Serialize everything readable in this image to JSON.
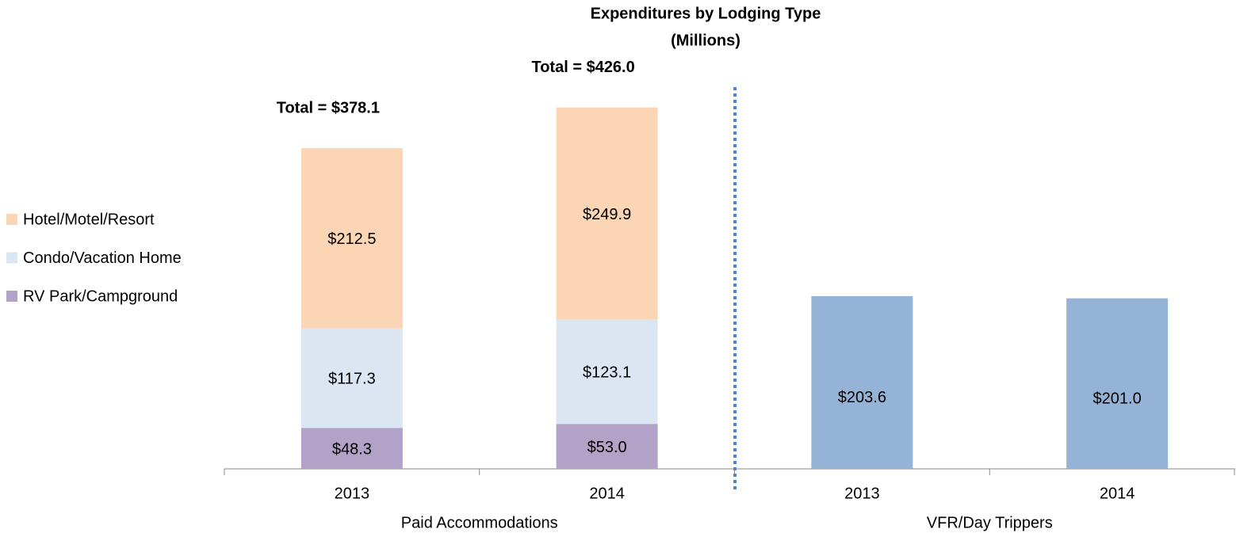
{
  "chart_data": {
    "type": "stacked-bar",
    "title": [
      "Expenditures by Lodging Type",
      "(Millions)"
    ],
    "categories": [
      "2013",
      "2014",
      "2013",
      "2014"
    ],
    "groups": [
      "Paid Accommodations",
      "VFR/Day Trippers"
    ],
    "group_spans": [
      [
        0,
        1
      ],
      [
        2,
        3
      ]
    ],
    "series": [
      {
        "name": "RV Park/Campground",
        "color": "#b3a2c7",
        "values": [
          48.3,
          53.0,
          null,
          null
        ],
        "value_labels": [
          "$48.3",
          "$53.0",
          null,
          null
        ]
      },
      {
        "name": "Condo/Vacation Home",
        "color": "#dce6f2",
        "values": [
          117.3,
          123.1,
          null,
          null
        ],
        "value_labels": [
          "$117.3",
          "$123.1",
          null,
          null
        ]
      },
      {
        "name": "Hotel/Motel/Resort",
        "color": "#fcd5b5",
        "values": [
          212.5,
          249.9,
          null,
          null
        ],
        "value_labels": [
          "$212.5",
          "$249.9",
          null,
          null
        ]
      },
      {
        "color": "#95b3d7",
        "values": [
          null,
          null,
          203.6,
          201.0
        ],
        "value_labels": [
          null,
          null,
          "$203.6",
          "$201.0"
        ]
      }
    ],
    "totals": [
      378.1,
      426.0,
      null,
      null
    ],
    "total_labels": [
      "Total = $378.1",
      "Total = $426.0",
      null,
      null
    ],
    "ylim": [
      0,
      450
    ],
    "legend": "left"
  }
}
